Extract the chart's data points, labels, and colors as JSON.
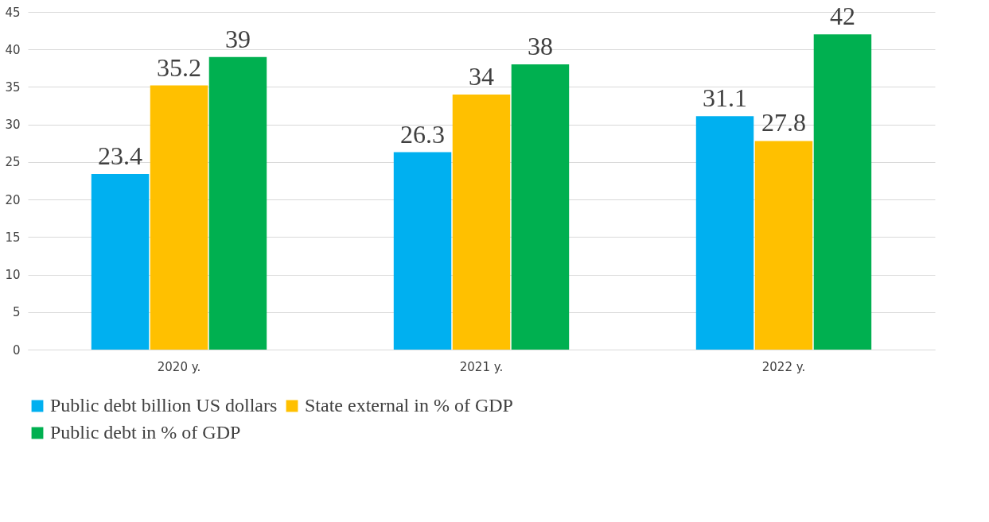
{
  "chart_data": {
    "type": "bar",
    "categories": [
      "2020 y.",
      "2021 y.",
      "2022 y."
    ],
    "series": [
      {
        "name": "Public debt billion US dollars",
        "color": "#00b0f0",
        "values": [
          23.4,
          26.3,
          31.1
        ]
      },
      {
        "name": "State external in % of GDP",
        "color": "#ffc000",
        "values": [
          35.2,
          34,
          27.8
        ]
      },
      {
        "name": "Public debt in % of GDP",
        "color": "#00b050",
        "values": [
          39,
          38,
          42
        ]
      }
    ],
    "ylim": [
      0,
      45
    ],
    "yticks": [
      0,
      5,
      10,
      15,
      20,
      25,
      30,
      35,
      40,
      45
    ],
    "grid": "y",
    "legend": "bottom",
    "data_labels": true
  }
}
